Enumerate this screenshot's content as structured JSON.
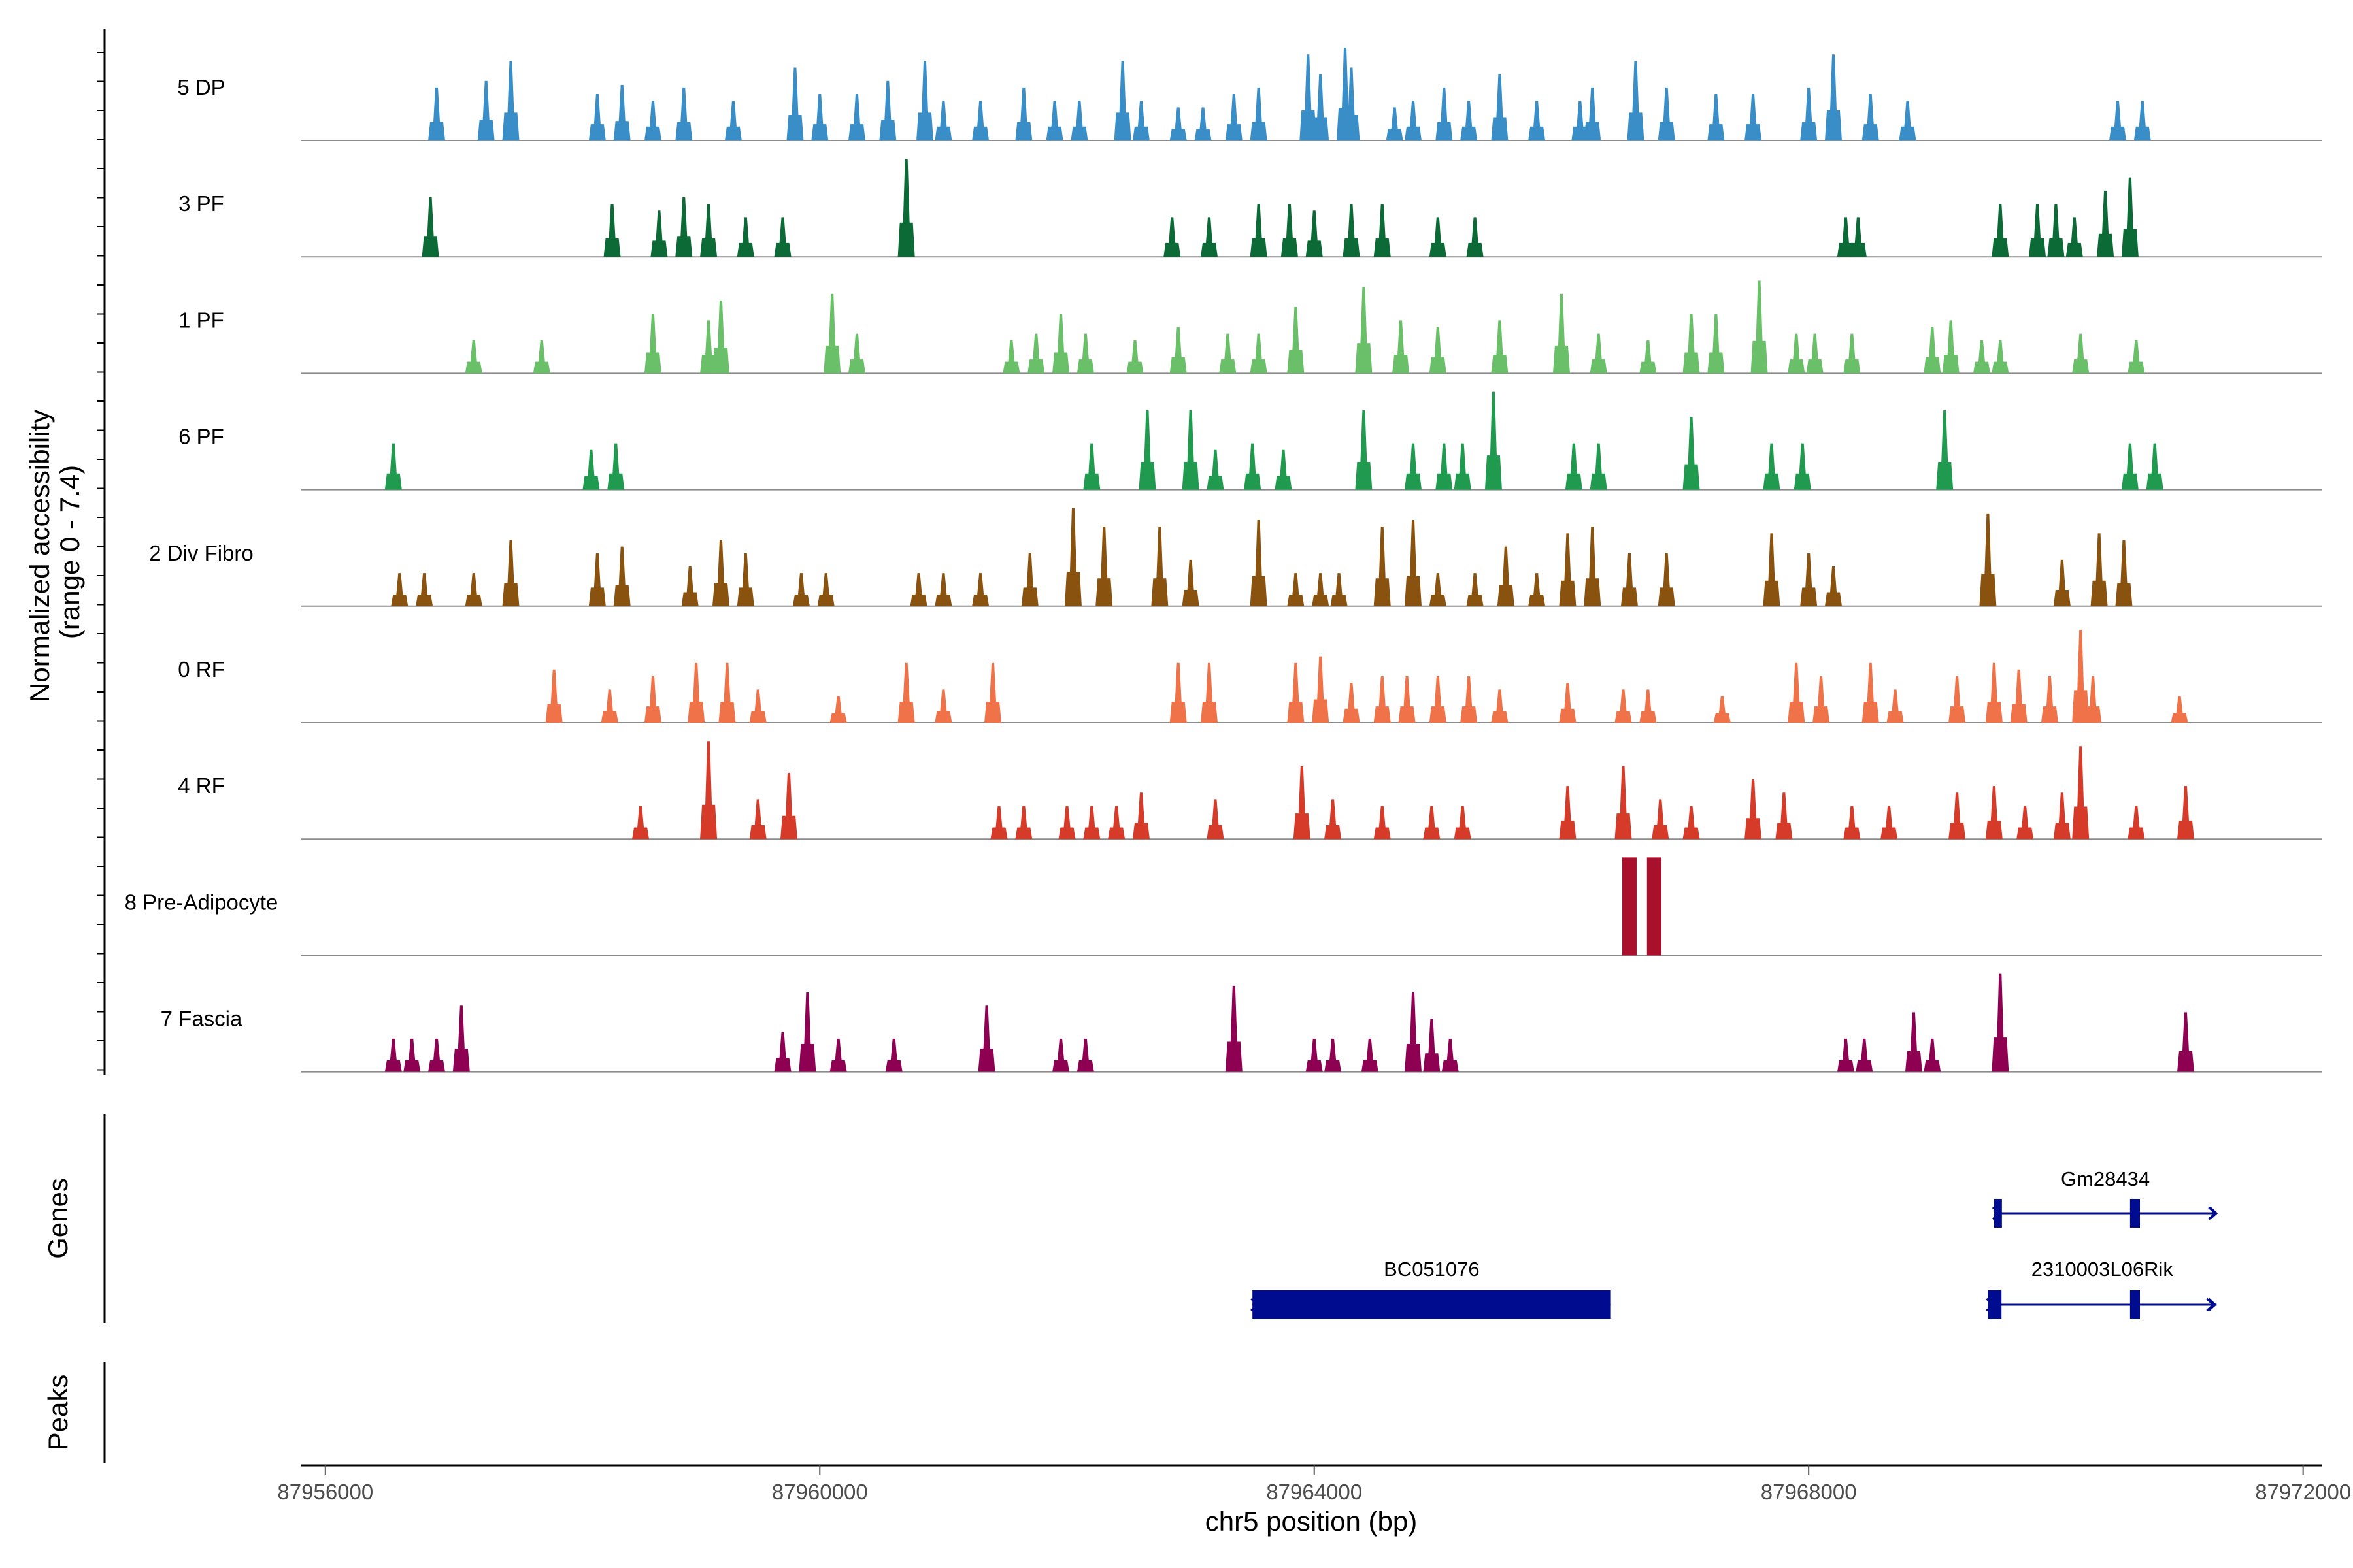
{
  "chart_data": {
    "type": "area",
    "title": "",
    "chromosome": "chr5",
    "xlabel": "chr5 position (bp)",
    "ylabel_line1": "Normalized accessibility",
    "ylabel_line2": "(range 0 - 7.4)",
    "ylim": [
      0,
      7.4
    ],
    "xlim": [
      87955800,
      87972150
    ],
    "x_ticks": [
      {
        "value": 87956000,
        "label": "87956000"
      },
      {
        "value": 87960000,
        "label": "87960000"
      },
      {
        "value": 87964000,
        "label": "87964000"
      },
      {
        "value": 87968000,
        "label": "87968000"
      },
      {
        "value": 87972000,
        "label": "87972000"
      }
    ],
    "panel_labels": {
      "genes": "Genes",
      "peaks": "Peaks"
    },
    "series": [
      {
        "name": "5 DP",
        "color": "#3a8ec7",
        "peaks": [
          [
            87956900,
            4.0
          ],
          [
            87957300,
            4.5
          ],
          [
            87957500,
            6.0
          ],
          [
            87958200,
            3.5
          ],
          [
            87958400,
            4.2
          ],
          [
            87958650,
            3.0
          ],
          [
            87958900,
            4.0
          ],
          [
            87959300,
            3.0
          ],
          [
            87959800,
            5.5
          ],
          [
            87960000,
            3.5
          ],
          [
            87960300,
            3.5
          ],
          [
            87960550,
            4.5
          ],
          [
            87960850,
            6.0
          ],
          [
            87961000,
            3.0
          ],
          [
            87961300,
            3.0
          ],
          [
            87961650,
            4.0
          ],
          [
            87961900,
            3.0
          ],
          [
            87962100,
            3.0
          ],
          [
            87962450,
            6.0
          ],
          [
            87962600,
            3.0
          ],
          [
            87962900,
            2.5
          ],
          [
            87963100,
            2.5
          ],
          [
            87963350,
            3.5
          ],
          [
            87963550,
            4.0
          ],
          [
            87963950,
            6.5
          ],
          [
            87964050,
            5.0
          ],
          [
            87964250,
            7.0
          ],
          [
            87964300,
            5.5
          ],
          [
            87964650,
            2.5
          ],
          [
            87964800,
            3.0
          ],
          [
            87965050,
            4.0
          ],
          [
            87965250,
            3.0
          ],
          [
            87965500,
            5.0
          ],
          [
            87965800,
            3.0
          ],
          [
            87966150,
            3.0
          ],
          [
            87966250,
            4.0
          ],
          [
            87966600,
            6.0
          ],
          [
            87966850,
            4.0
          ],
          [
            87967250,
            3.5
          ],
          [
            87967550,
            3.5
          ],
          [
            87968000,
            4.0
          ],
          [
            87968200,
            6.5
          ],
          [
            87968500,
            3.5
          ],
          [
            87968800,
            3.0
          ],
          [
            87970500,
            3.0
          ],
          [
            87970700,
            3.0
          ]
        ]
      },
      {
        "name": "3 PF",
        "color": "#0b6a35",
        "peaks": [
          [
            87956850,
            4.5
          ],
          [
            87958320,
            4.0
          ],
          [
            87958700,
            3.5
          ],
          [
            87958900,
            4.5
          ],
          [
            87959100,
            4.0
          ],
          [
            87959400,
            3.0
          ],
          [
            87959700,
            3.0
          ],
          [
            87960700,
            7.4
          ],
          [
            87962850,
            3.0
          ],
          [
            87963150,
            3.0
          ],
          [
            87963550,
            4.0
          ],
          [
            87963800,
            4.0
          ],
          [
            87964000,
            3.5
          ],
          [
            87964300,
            4.0
          ],
          [
            87964550,
            4.0
          ],
          [
            87965000,
            3.0
          ],
          [
            87965300,
            3.0
          ],
          [
            87968300,
            3.0
          ],
          [
            87968400,
            3.0
          ],
          [
            87969550,
            4.0
          ],
          [
            87969850,
            4.0
          ],
          [
            87970000,
            4.0
          ],
          [
            87970150,
            3.0
          ],
          [
            87970400,
            5.0
          ],
          [
            87970600,
            6.0
          ]
        ]
      },
      {
        "name": "1 PF",
        "color": "#6abf69",
        "peaks": [
          [
            87957200,
            2.5
          ],
          [
            87957750,
            2.5
          ],
          [
            87958650,
            4.5
          ],
          [
            87959100,
            4.0
          ],
          [
            87959200,
            5.5
          ],
          [
            87960100,
            6.0
          ],
          [
            87960300,
            3.0
          ],
          [
            87961550,
            2.5
          ],
          [
            87961750,
            3.0
          ],
          [
            87961950,
            4.5
          ],
          [
            87962150,
            3.0
          ],
          [
            87962550,
            2.5
          ],
          [
            87962900,
            3.5
          ],
          [
            87963300,
            3.0
          ],
          [
            87963550,
            3.0
          ],
          [
            87963850,
            5.0
          ],
          [
            87964400,
            6.5
          ],
          [
            87964700,
            4.0
          ],
          [
            87965000,
            3.5
          ],
          [
            87965500,
            4.0
          ],
          [
            87966000,
            6.0
          ],
          [
            87966300,
            3.0
          ],
          [
            87966700,
            2.5
          ],
          [
            87967050,
            4.5
          ],
          [
            87967250,
            4.5
          ],
          [
            87967600,
            7.0
          ],
          [
            87967900,
            3.0
          ],
          [
            87968050,
            3.0
          ],
          [
            87968350,
            3.0
          ],
          [
            87969000,
            3.5
          ],
          [
            87969150,
            4.0
          ],
          [
            87969400,
            2.5
          ],
          [
            87969550,
            2.5
          ],
          [
            87970200,
            3.0
          ],
          [
            87970650,
            2.5
          ]
        ]
      },
      {
        "name": "6 PF",
        "color": "#1f9a4e",
        "peaks": [
          [
            87956550,
            3.5
          ],
          [
            87958150,
            3.0
          ],
          [
            87958350,
            3.5
          ],
          [
            87962200,
            3.5
          ],
          [
            87962650,
            6.0
          ],
          [
            87963000,
            6.0
          ],
          [
            87963200,
            3.0
          ],
          [
            87963500,
            3.5
          ],
          [
            87963750,
            3.0
          ],
          [
            87964400,
            6.0
          ],
          [
            87964800,
            3.5
          ],
          [
            87965050,
            3.5
          ],
          [
            87965200,
            3.5
          ],
          [
            87965450,
            7.4
          ],
          [
            87966100,
            3.5
          ],
          [
            87966300,
            3.5
          ],
          [
            87967050,
            5.5
          ],
          [
            87967700,
            3.5
          ],
          [
            87967950,
            3.5
          ],
          [
            87969100,
            6.0
          ],
          [
            87970600,
            3.5
          ],
          [
            87970800,
            3.5
          ]
        ]
      },
      {
        "name": "2 Div Fibro",
        "color": "#8a520f",
        "peaks": [
          [
            87956600,
            2.5
          ],
          [
            87956800,
            2.5
          ],
          [
            87957200,
            2.5
          ],
          [
            87957500,
            5.0
          ],
          [
            87958200,
            4.0
          ],
          [
            87958400,
            4.5
          ],
          [
            87958950,
            3.0
          ],
          [
            87959200,
            5.0
          ],
          [
            87959400,
            4.0
          ],
          [
            87959850,
            2.5
          ],
          [
            87960050,
            2.5
          ],
          [
            87960800,
            2.5
          ],
          [
            87961000,
            2.5
          ],
          [
            87961300,
            2.5
          ],
          [
            87961700,
            4.0
          ],
          [
            87962050,
            7.4
          ],
          [
            87962300,
            6.0
          ],
          [
            87962750,
            6.0
          ],
          [
            87963000,
            3.5
          ],
          [
            87963550,
            6.5
          ],
          [
            87963850,
            2.5
          ],
          [
            87964050,
            2.5
          ],
          [
            87964200,
            2.5
          ],
          [
            87964550,
            6.0
          ],
          [
            87964800,
            6.5
          ],
          [
            87965000,
            2.5
          ],
          [
            87965300,
            2.5
          ],
          [
            87965550,
            4.5
          ],
          [
            87965800,
            2.5
          ],
          [
            87966050,
            5.5
          ],
          [
            87966250,
            6.0
          ],
          [
            87966550,
            4.0
          ],
          [
            87966850,
            4.0
          ],
          [
            87967700,
            5.5
          ],
          [
            87968000,
            4.0
          ],
          [
            87968200,
            3.0
          ],
          [
            87969450,
            7.0
          ],
          [
            87970050,
            3.5
          ],
          [
            87970350,
            5.5
          ],
          [
            87970550,
            5.0
          ]
        ]
      },
      {
        "name": "0 RF",
        "color": "#f07248",
        "peaks": [
          [
            87957850,
            4.0
          ],
          [
            87958300,
            2.5
          ],
          [
            87958650,
            3.5
          ],
          [
            87959000,
            4.5
          ],
          [
            87959250,
            4.5
          ],
          [
            87959500,
            2.5
          ],
          [
            87960150,
            2.0
          ],
          [
            87960700,
            4.5
          ],
          [
            87961000,
            2.5
          ],
          [
            87961400,
            4.5
          ],
          [
            87962900,
            4.5
          ],
          [
            87963150,
            4.5
          ],
          [
            87963850,
            4.5
          ],
          [
            87964050,
            5.0
          ],
          [
            87964300,
            3.0
          ],
          [
            87964550,
            3.5
          ],
          [
            87964750,
            3.5
          ],
          [
            87965000,
            3.5
          ],
          [
            87965250,
            3.5
          ],
          [
            87965500,
            2.5
          ],
          [
            87966050,
            3.0
          ],
          [
            87966500,
            2.5
          ],
          [
            87966700,
            2.5
          ],
          [
            87967300,
            2.0
          ],
          [
            87967900,
            4.5
          ],
          [
            87968100,
            3.5
          ],
          [
            87968500,
            4.5
          ],
          [
            87968700,
            2.5
          ],
          [
            87969200,
            3.5
          ],
          [
            87969500,
            4.5
          ],
          [
            87969700,
            4.0
          ],
          [
            87969950,
            3.5
          ],
          [
            87970200,
            7.0
          ],
          [
            87970300,
            3.5
          ],
          [
            87971000,
            2.0
          ]
        ]
      },
      {
        "name": "4 RF",
        "color": "#d63a28",
        "peaks": [
          [
            87958550,
            2.5
          ],
          [
            87959100,
            7.4
          ],
          [
            87959500,
            3.0
          ],
          [
            87959750,
            5.0
          ],
          [
            87961450,
            2.5
          ],
          [
            87961650,
            2.5
          ],
          [
            87962000,
            2.5
          ],
          [
            87962200,
            2.5
          ],
          [
            87962400,
            2.5
          ],
          [
            87962600,
            3.5
          ],
          [
            87963200,
            3.0
          ],
          [
            87963900,
            5.5
          ],
          [
            87964150,
            3.0
          ],
          [
            87964550,
            2.5
          ],
          [
            87964950,
            2.5
          ],
          [
            87965200,
            2.5
          ],
          [
            87966050,
            4.0
          ],
          [
            87966500,
            5.5
          ],
          [
            87966800,
            3.0
          ],
          [
            87967050,
            2.5
          ],
          [
            87967550,
            4.5
          ],
          [
            87967800,
            3.5
          ],
          [
            87968350,
            2.5
          ],
          [
            87968650,
            2.5
          ],
          [
            87969200,
            3.5
          ],
          [
            87969500,
            4.0
          ],
          [
            87969750,
            2.5
          ],
          [
            87970050,
            3.5
          ],
          [
            87970200,
            7.0
          ],
          [
            87970650,
            2.5
          ],
          [
            87971050,
            4.0
          ]
        ]
      },
      {
        "name": "8 Pre-Adipocyte",
        "color": "#a8102c",
        "peaks": [
          [
            87966550,
            7.4
          ],
          [
            87966750,
            7.4
          ]
        ]
      },
      {
        "name": "7 Fascia",
        "color": "#8e0152",
        "peaks": [
          [
            87956550,
            2.5
          ],
          [
            87956700,
            2.5
          ],
          [
            87956900,
            2.5
          ],
          [
            87957100,
            5.0
          ],
          [
            87959700,
            3.0
          ],
          [
            87959900,
            6.0
          ],
          [
            87960150,
            2.5
          ],
          [
            87960600,
            2.5
          ],
          [
            87961350,
            5.0
          ],
          [
            87961950,
            2.5
          ],
          [
            87962150,
            2.5
          ],
          [
            87963350,
            6.5
          ],
          [
            87964000,
            2.5
          ],
          [
            87964150,
            2.5
          ],
          [
            87964450,
            2.5
          ],
          [
            87964800,
            6.0
          ],
          [
            87964950,
            4.0
          ],
          [
            87965100,
            2.5
          ],
          [
            87968300,
            2.5
          ],
          [
            87968450,
            2.5
          ],
          [
            87968850,
            4.5
          ],
          [
            87969000,
            2.5
          ],
          [
            87969550,
            7.4
          ],
          [
            87971050,
            4.5
          ]
        ]
      }
    ],
    "genes": [
      {
        "name": "Gm28434",
        "start": 87969500,
        "end": 87971300,
        "exons": [
          [
            87969500,
            87969560
          ],
          [
            87970600,
            87970680
          ]
        ],
        "strand": "+"
      },
      {
        "name": "2310003L06Rik",
        "start": 87969450,
        "end": 87971300,
        "exons": [
          [
            87969450,
            87969560
          ],
          [
            87970600,
            87970680
          ]
        ],
        "strand": "+"
      },
      {
        "name": "BC051076",
        "start": 87963500,
        "end": 87966400,
        "exons": [
          [
            87963500,
            87966400
          ]
        ],
        "strand": "+"
      }
    ]
  }
}
